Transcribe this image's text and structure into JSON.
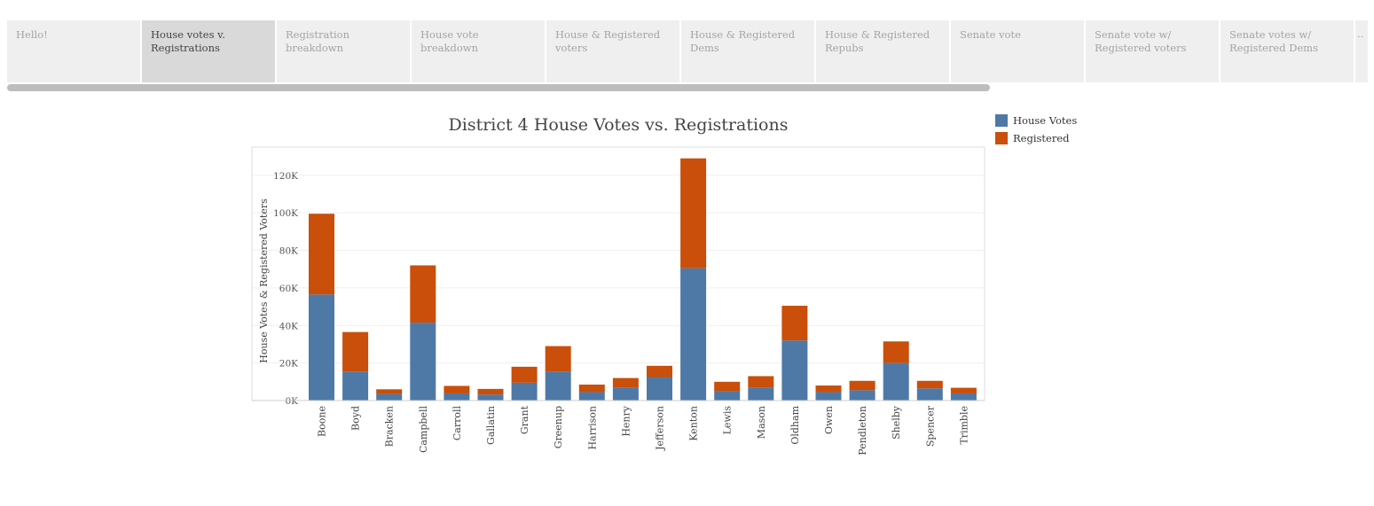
{
  "tabs": [
    {
      "label": "Hello!",
      "active": false
    },
    {
      "label": "House votes v. Registrations",
      "active": true
    },
    {
      "label": "Registration breakdown",
      "active": false
    },
    {
      "label": "House vote breakdown",
      "active": false
    },
    {
      "label": "House & Registered voters",
      "active": false
    },
    {
      "label": "House & Registered Dems",
      "active": false
    },
    {
      "label": "House & Registered Repubs",
      "active": false
    },
    {
      "label": "Senate vote",
      "active": false
    },
    {
      "label": "Senate vote w/ Registered voters",
      "active": false
    },
    {
      "label": "Senate votes w/ Registered Dems",
      "active": false
    },
    {
      "label": "..",
      "active": false
    }
  ],
  "chart_data": {
    "type": "bar",
    "stacked": true,
    "title": "District 4 House Votes vs. Registrations",
    "xlabel": "",
    "ylabel": "House Votes & Registered Voters",
    "ylim": [
      0,
      135000
    ],
    "yticks": [
      0,
      20000,
      40000,
      60000,
      80000,
      100000,
      120000
    ],
    "ytick_labels": [
      "0K",
      "20K",
      "40K",
      "60K",
      "80K",
      "100K",
      "120K"
    ],
    "grid": true,
    "legend_position": "right",
    "categories": [
      "Boone",
      "Boyd",
      "Bracken",
      "Campbell",
      "Carroll",
      "Gallatin",
      "Grant",
      "Greenup",
      "Harrison",
      "Henry",
      "Jefferson",
      "Kenton",
      "Lewis",
      "Mason",
      "Oldham",
      "Owen",
      "Pendleton",
      "Shelby",
      "Spencer",
      "Trimble"
    ],
    "series": [
      {
        "name": "House Votes",
        "color": "#4e79a7",
        "values": [
          56500,
          15500,
          3500,
          41500,
          3800,
          3200,
          9500,
          15500,
          4500,
          7000,
          12500,
          70500,
          5000,
          7000,
          32000,
          4500,
          5500,
          20000,
          6500,
          3800
        ]
      },
      {
        "name": "Registered",
        "color": "#c94f0a",
        "values": [
          43000,
          21000,
          2500,
          30500,
          4000,
          3000,
          8500,
          13500,
          4000,
          5000,
          6000,
          58500,
          5000,
          6000,
          18500,
          3500,
          5000,
          11500,
          4000,
          3000
        ]
      }
    ]
  }
}
